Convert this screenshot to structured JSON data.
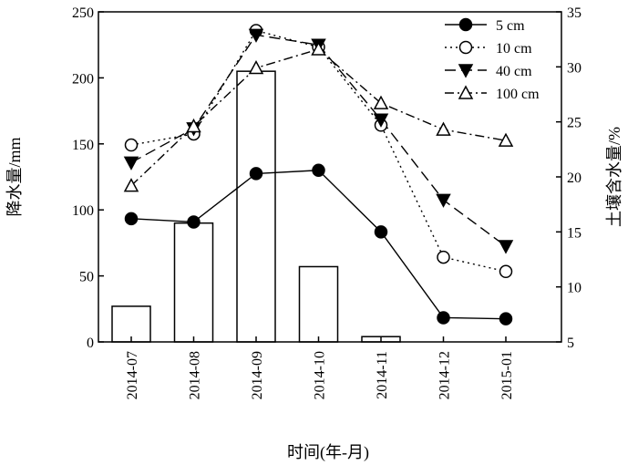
{
  "chart_data": {
    "type": "bar+line",
    "categories": [
      "2014-07",
      "2014-08",
      "2014-09",
      "2014-10",
      "2014-11",
      "2014-12",
      "2015-01"
    ],
    "bars": {
      "axis": "left",
      "values": [
        27,
        90,
        205,
        57,
        4,
        0,
        0
      ]
    },
    "series": [
      {
        "name": "5 cm",
        "axis": "right",
        "marker": "filled-circle",
        "line": "solid",
        "values": [
          16.2,
          15.9,
          20.3,
          20.6,
          15.0,
          7.2,
          7.1
        ]
      },
      {
        "name": "10 cm",
        "axis": "right",
        "marker": "open-circle",
        "line": "dotted",
        "values": [
          22.9,
          23.9,
          33.3,
          31.8,
          24.7,
          12.7,
          11.4
        ]
      },
      {
        "name": "40 cm",
        "axis": "right",
        "marker": "filled-down-triangle",
        "line": "dashed",
        "values": [
          21.3,
          24.4,
          32.9,
          32.0,
          25.2,
          17.9,
          13.7
        ]
      },
      {
        "name": "100 cm",
        "axis": "right",
        "marker": "open-triangle",
        "line": "dash-dot",
        "values": [
          19.2,
          24.6,
          29.9,
          31.6,
          26.7,
          24.3,
          23.3
        ]
      }
    ],
    "xlabel": "时间(年-月)",
    "ylabel": "降水量/mm",
    "y2label": "土壤含水量/%",
    "ylim": [
      0,
      250
    ],
    "y2lim": [
      5,
      35
    ],
    "yticks": [
      "0",
      "50",
      "100",
      "150",
      "200",
      "250"
    ],
    "y2ticks": [
      "5",
      "10",
      "15",
      "20",
      "25",
      "30",
      "35"
    ],
    "legend": "top-right",
    "grid": false
  }
}
